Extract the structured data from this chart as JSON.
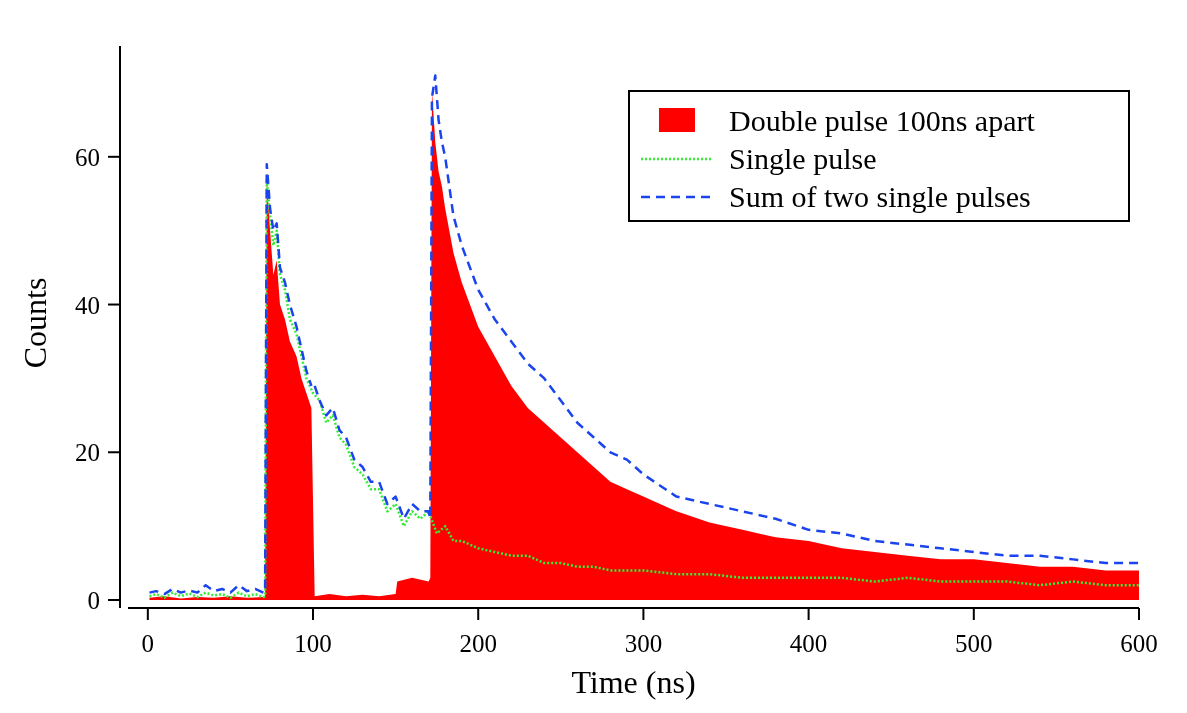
{
  "chart_data": {
    "type": "area",
    "xlabel": "Time (ns)",
    "ylabel": "Counts",
    "xlim": [
      -12,
      600
    ],
    "ylim": [
      0,
      75
    ],
    "xticks": [
      0,
      100,
      200,
      300,
      400,
      500,
      600
    ],
    "yticks": [
      0,
      20,
      40,
      60
    ],
    "grid": false,
    "legend": "top right",
    "series": [
      {
        "name": "Double pulse 100ns apart",
        "color": "#ff0000",
        "x": [
          1,
          10,
          20,
          30,
          40,
          50,
          60,
          70,
          71,
          72,
          74,
          76,
          78,
          80,
          83,
          86,
          90,
          93,
          96,
          99,
          100,
          101,
          110,
          120,
          130,
          140,
          150,
          151,
          160,
          170,
          171,
          172,
          174,
          176,
          178,
          180,
          185,
          190,
          195,
          200,
          210,
          220,
          230,
          240,
          250,
          260,
          270,
          280,
          290,
          300,
          320,
          340,
          360,
          380,
          400,
          420,
          440,
          460,
          480,
          500,
          520,
          540,
          560,
          580,
          600
        ],
        "values": [
          0.3,
          0.5,
          0.2,
          0.4,
          0.3,
          0.5,
          0.3,
          0.4,
          0.4,
          57,
          50,
          44,
          46,
          40,
          38,
          35,
          33,
          30,
          28,
          26,
          null,
          0.5,
          0.8,
          0.5,
          0.7,
          0.5,
          0.8,
          2.5,
          3,
          2.5,
          3,
          69,
          62,
          58,
          56,
          53,
          47,
          43,
          40,
          37,
          33,
          29,
          26,
          24,
          22,
          20,
          18,
          16,
          15,
          14,
          12,
          10.5,
          9.5,
          8.5,
          8,
          7,
          6.5,
          6,
          5.5,
          5.5,
          5,
          4.5,
          4.5,
          4,
          4
        ]
      },
      {
        "name": "Single pulse",
        "type": "line",
        "line_style": "dotted",
        "color": "#33ee33",
        "x": [
          1,
          5,
          10,
          15,
          20,
          25,
          30,
          35,
          40,
          45,
          50,
          55,
          60,
          65,
          70,
          71,
          72,
          74,
          76,
          78,
          80,
          83,
          86,
          90,
          93,
          96,
          100,
          104,
          108,
          112,
          116,
          120,
          125,
          130,
          135,
          140,
          145,
          150,
          155,
          160,
          165,
          170,
          175,
          180,
          185,
          190,
          200,
          210,
          220,
          230,
          240,
          250,
          260,
          270,
          280,
          300,
          320,
          340,
          360,
          380,
          400,
          420,
          440,
          460,
          480,
          500,
          520,
          540,
          560,
          580,
          600
        ],
        "values": [
          0.5,
          0.8,
          0.3,
          1,
          0.5,
          0.9,
          0.4,
          1,
          0.6,
          0.8,
          0.3,
          1,
          0.5,
          0.8,
          0.4,
          0.5,
          57,
          52,
          48,
          50,
          44,
          42,
          38,
          36,
          33,
          30,
          28,
          27,
          24,
          25,
          22,
          21,
          18,
          17,
          15,
          15,
          12,
          13,
          10,
          12,
          11,
          12,
          9,
          10,
          8,
          8,
          7,
          6.5,
          6,
          6,
          5,
          5,
          4.5,
          4.5,
          4,
          4,
          3.5,
          3.5,
          3,
          3,
          3,
          3,
          2.5,
          3,
          2.5,
          2.5,
          2.5,
          2,
          2.5,
          2,
          2
        ]
      },
      {
        "name": "Sum of two single pulses",
        "type": "line",
        "line_style": "dashed",
        "color": "#1a44ee",
        "x": [
          1,
          5,
          10,
          15,
          20,
          25,
          30,
          35,
          40,
          45,
          50,
          55,
          60,
          65,
          70,
          71,
          72,
          74,
          76,
          78,
          80,
          83,
          86,
          90,
          93,
          96,
          99,
          100,
          101,
          104,
          108,
          112,
          116,
          120,
          125,
          130,
          135,
          140,
          145,
          150,
          155,
          160,
          165,
          170,
          171,
          172,
          174,
          176,
          178,
          180,
          185,
          190,
          195,
          200,
          210,
          220,
          230,
          240,
          250,
          260,
          270,
          280,
          290,
          300,
          320,
          340,
          360,
          380,
          400,
          420,
          440,
          460,
          480,
          500,
          520,
          540,
          560,
          580,
          600
        ],
        "values": [
          1,
          1.2,
          0.8,
          1.5,
          1,
          1.3,
          1,
          2,
          1.2,
          1.5,
          1,
          2,
          1.2,
          1.5,
          1,
          1,
          59,
          53,
          50,
          51,
          45,
          43,
          40,
          37,
          34,
          31,
          29,
          null,
          29,
          27,
          25,
          26,
          23,
          22,
          19,
          18,
          16,
          16,
          13,
          14,
          11,
          13,
          12,
          12,
          11,
          68,
          71,
          65,
          62,
          60,
          52,
          48,
          45,
          42,
          38,
          35,
          32,
          30,
          27,
          24,
          22,
          20,
          19,
          17,
          14,
          13,
          12,
          11,
          9.5,
          9,
          8,
          7.5,
          7,
          6.5,
          6,
          6,
          5.5,
          5,
          5
        ]
      }
    ]
  }
}
